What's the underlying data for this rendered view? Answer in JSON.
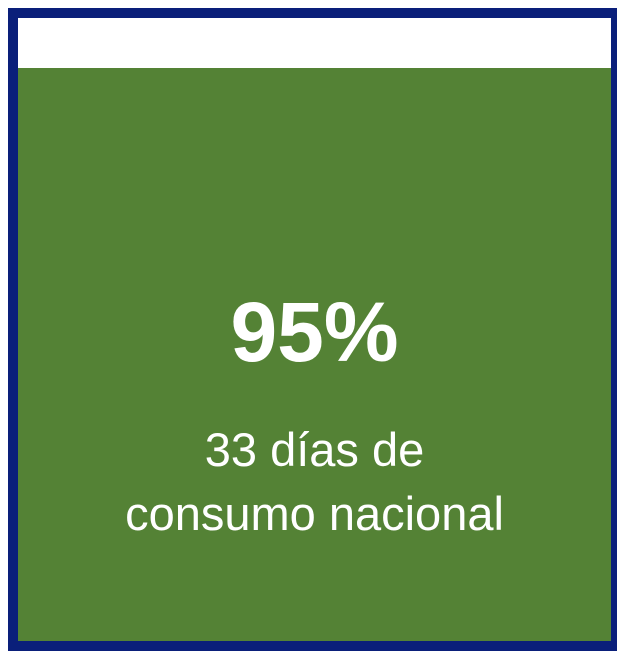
{
  "card": {
    "value": "95%",
    "description": [
      "33 días de",
      "consumo nacional"
    ]
  }
}
